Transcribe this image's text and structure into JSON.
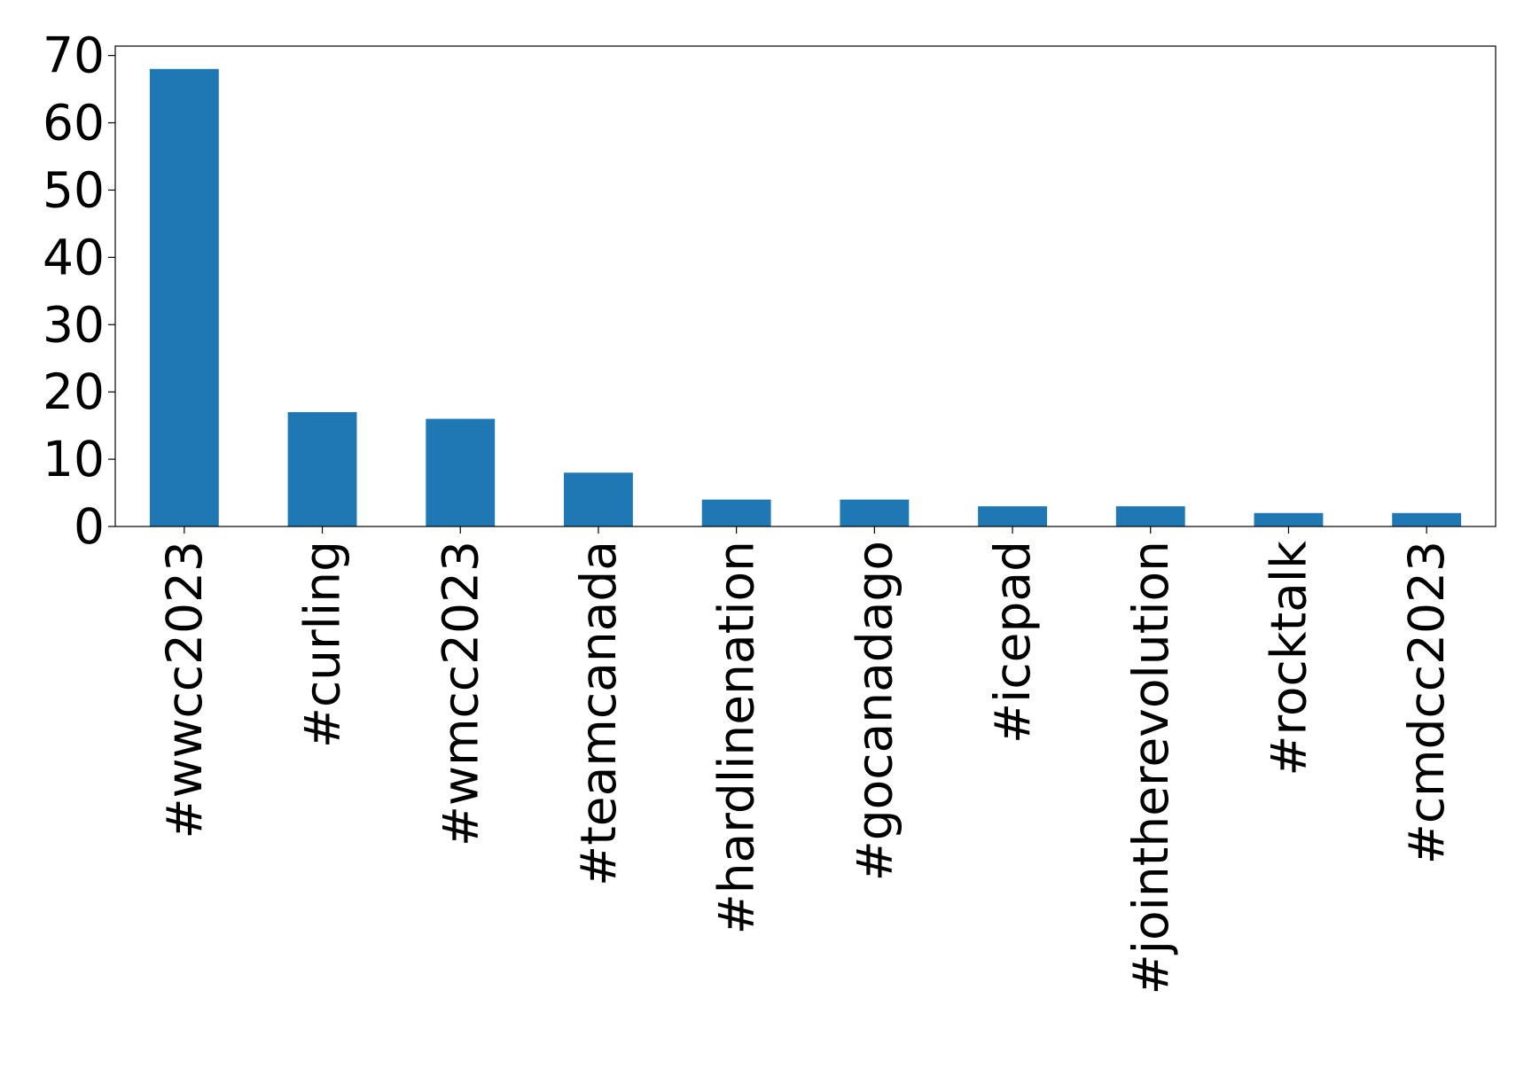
{
  "chart_data": {
    "type": "bar",
    "categories": [
      "#wwcc2023",
      "#curling",
      "#wmcc2023",
      "#teamcanada",
      "#hardlinenation",
      "#gocanadago",
      "#icepad",
      "#jointherevolution",
      "#rocktalk",
      "#cmdcc2023"
    ],
    "values": [
      68,
      17,
      16,
      8,
      4,
      4,
      3,
      3,
      2,
      2
    ],
    "color": "#1f77b4",
    "ylim": [
      0,
      71.4
    ],
    "yticks": [
      0,
      10,
      20,
      30,
      40,
      50,
      60,
      70
    ],
    "grid": false
  }
}
